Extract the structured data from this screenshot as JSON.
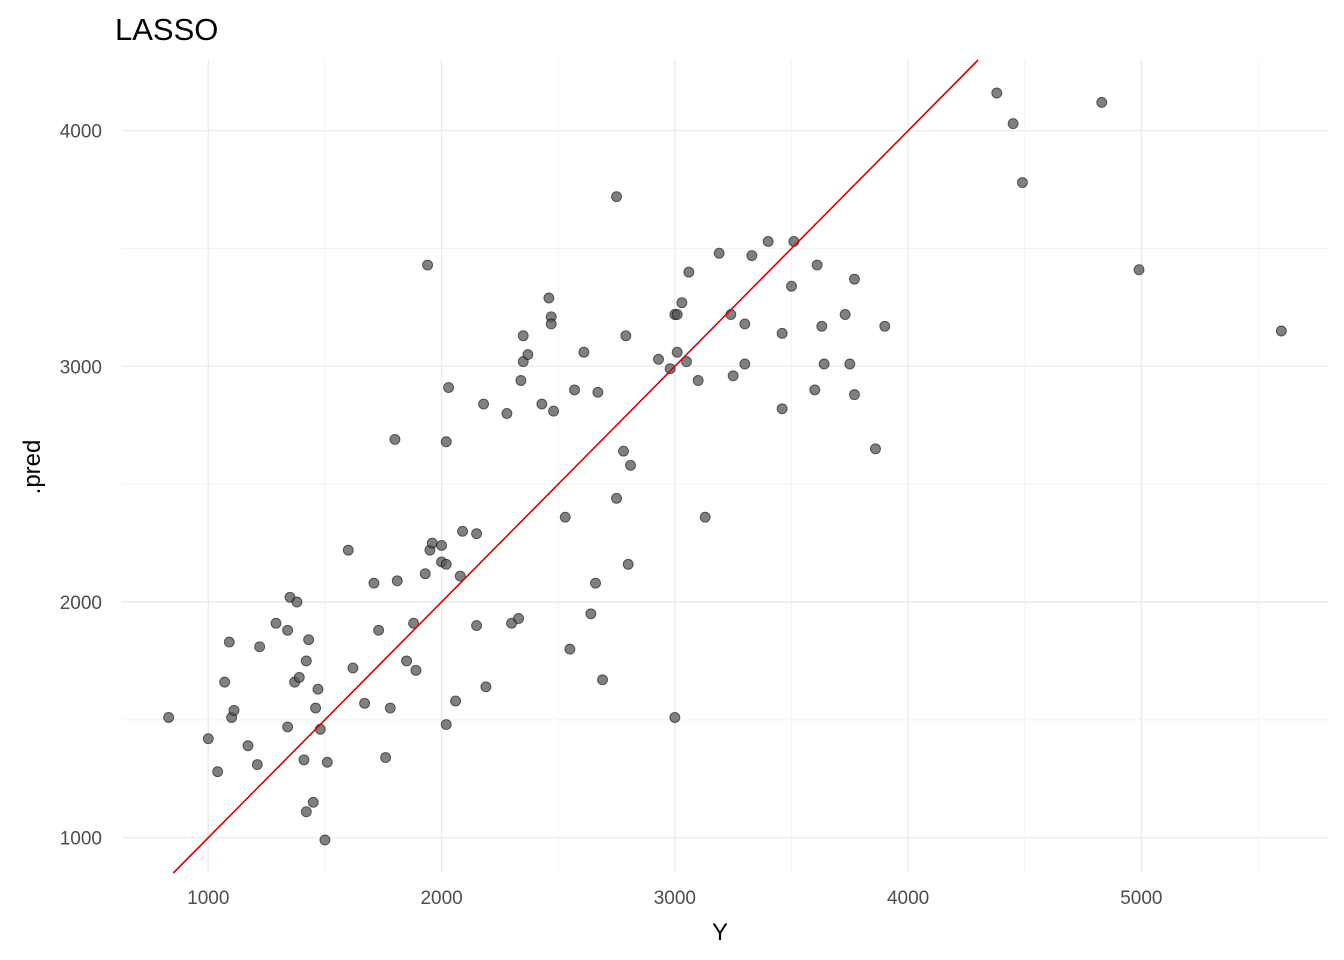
{
  "chart_data": {
    "type": "scatter",
    "title": "LASSO",
    "xlabel": "Y",
    "ylabel": ".pred",
    "xlim": [
      630,
      5800
    ],
    "ylim": [
      850,
      4300
    ],
    "x_ticks": [
      1000,
      2000,
      3000,
      4000,
      5000
    ],
    "y_ticks": [
      1000,
      2000,
      3000,
      4000
    ],
    "grid": true,
    "legend": "none",
    "point_color": "#555555",
    "line_color": "#dd0000",
    "reference_line": {
      "slope": 1,
      "intercept": 0
    },
    "points": [
      [
        830,
        1510
      ],
      [
        1000,
        1420
      ],
      [
        1040,
        1280
      ],
      [
        1070,
        1660
      ],
      [
        1090,
        1830
      ],
      [
        1100,
        1510
      ],
      [
        1110,
        1540
      ],
      [
        1170,
        1390
      ],
      [
        1210,
        1310
      ],
      [
        1220,
        1810
      ],
      [
        1290,
        1910
      ],
      [
        1340,
        1470
      ],
      [
        1340,
        1880
      ],
      [
        1350,
        2020
      ],
      [
        1370,
        1660
      ],
      [
        1380,
        2000
      ],
      [
        1390,
        1680
      ],
      [
        1410,
        1330
      ],
      [
        1420,
        1750
      ],
      [
        1420,
        1110
      ],
      [
        1430,
        1840
      ],
      [
        1450,
        1150
      ],
      [
        1460,
        1550
      ],
      [
        1470,
        1630
      ],
      [
        1480,
        1460
      ],
      [
        1500,
        990
      ],
      [
        1510,
        1320
      ],
      [
        1600,
        2220
      ],
      [
        1620,
        1720
      ],
      [
        1670,
        1570
      ],
      [
        1710,
        2080
      ],
      [
        1730,
        1880
      ],
      [
        1760,
        1340
      ],
      [
        1780,
        1550
      ],
      [
        1800,
        2690
      ],
      [
        1810,
        2090
      ],
      [
        1850,
        1750
      ],
      [
        1880,
        1910
      ],
      [
        1890,
        1710
      ],
      [
        1930,
        2120
      ],
      [
        1940,
        3430
      ],
      [
        1950,
        2220
      ],
      [
        1960,
        2250
      ],
      [
        2000,
        2240
      ],
      [
        2000,
        2170
      ],
      [
        2020,
        2160
      ],
      [
        2020,
        1480
      ],
      [
        2020,
        2680
      ],
      [
        2030,
        2910
      ],
      [
        2060,
        1580
      ],
      [
        2080,
        2110
      ],
      [
        2090,
        2300
      ],
      [
        2150,
        1900
      ],
      [
        2150,
        2290
      ],
      [
        2180,
        2840
      ],
      [
        2190,
        1640
      ],
      [
        2280,
        2800
      ],
      [
        2300,
        1910
      ],
      [
        2330,
        1930
      ],
      [
        2340,
        2940
      ],
      [
        2350,
        3130
      ],
      [
        2350,
        3020
      ],
      [
        2370,
        3050
      ],
      [
        2430,
        2840
      ],
      [
        2460,
        3290
      ],
      [
        2470,
        3210
      ],
      [
        2470,
        3180
      ],
      [
        2480,
        2810
      ],
      [
        2530,
        2360
      ],
      [
        2550,
        1800
      ],
      [
        2570,
        2900
      ],
      [
        2610,
        3060
      ],
      [
        2640,
        1950
      ],
      [
        2660,
        2080
      ],
      [
        2670,
        2890
      ],
      [
        2690,
        1670
      ],
      [
        2750,
        3720
      ],
      [
        2750,
        2440
      ],
      [
        2780,
        2640
      ],
      [
        2790,
        3130
      ],
      [
        2800,
        2160
      ],
      [
        2810,
        2580
      ],
      [
        2930,
        3030
      ],
      [
        2980,
        2990
      ],
      [
        3000,
        3220
      ],
      [
        3010,
        3220
      ],
      [
        3000,
        1510
      ],
      [
        3010,
        3060
      ],
      [
        3030,
        3270
      ],
      [
        3050,
        3020
      ],
      [
        3060,
        3400
      ],
      [
        3100,
        2940
      ],
      [
        3130,
        2360
      ],
      [
        3190,
        3480
      ],
      [
        3240,
        3220
      ],
      [
        3250,
        2960
      ],
      [
        3300,
        3180
      ],
      [
        3300,
        3010
      ],
      [
        3330,
        3470
      ],
      [
        3400,
        3530
      ],
      [
        3460,
        3140
      ],
      [
        3460,
        2820
      ],
      [
        3500,
        3340
      ],
      [
        3510,
        3530
      ],
      [
        3600,
        2900
      ],
      [
        3610,
        3430
      ],
      [
        3630,
        3170
      ],
      [
        3640,
        3010
      ],
      [
        3730,
        3220
      ],
      [
        3750,
        3010
      ],
      [
        3770,
        3370
      ],
      [
        3770,
        2880
      ],
      [
        3860,
        2650
      ],
      [
        3900,
        3170
      ],
      [
        4380,
        4160
      ],
      [
        4450,
        4030
      ],
      [
        4490,
        3780
      ],
      [
        4830,
        4120
      ],
      [
        4990,
        3410
      ],
      [
        5600,
        3150
      ]
    ]
  }
}
